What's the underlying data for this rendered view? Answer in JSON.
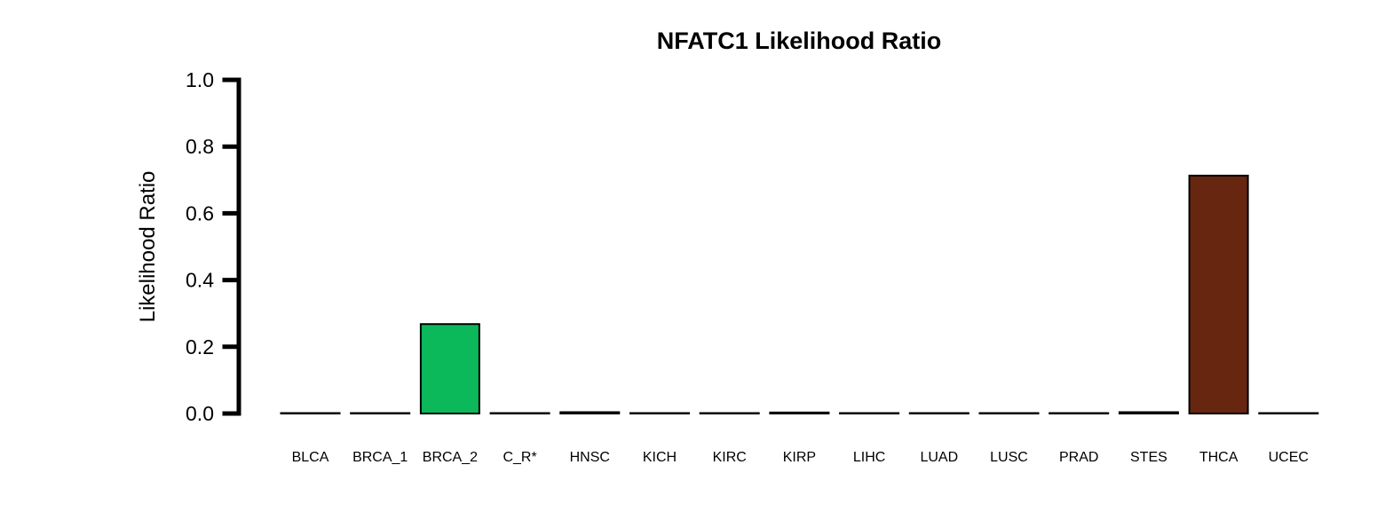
{
  "chart_data": {
    "type": "bar",
    "title": "NFATC1 Likelihood Ratio",
    "xlabel": "",
    "ylabel": "Likelihood Ratio",
    "ylim": [
      0,
      1
    ],
    "yticks": [
      "0.0",
      "0.2",
      "0.4",
      "0.6",
      "0.8",
      "1.0"
    ],
    "ytick_values": [
      0,
      0.2,
      0.4,
      0.6,
      0.8,
      1.0
    ],
    "grid": false,
    "categories": [
      "BLCA",
      "BRCA_1",
      "BRCA_2",
      "C_R*",
      "HNSC",
      "KICH",
      "KIRC",
      "KIRP",
      "LIHC",
      "LUAD",
      "LUSC",
      "PRAD",
      "STES",
      "THCA",
      "UCEC"
    ],
    "values": [
      0.0,
      0.0,
      0.268,
      0.0,
      0.004,
      0.0,
      0.0,
      0.003,
      0.0,
      0.0,
      0.0,
      0.0,
      0.004,
      0.713,
      0.0
    ],
    "colors": [
      "#ffffff",
      "#ffffff",
      "#0bb85a",
      "#ffffff",
      "#ffffff",
      "#ffffff",
      "#ffffff",
      "#ffffff",
      "#ffffff",
      "#ffffff",
      "#ffffff",
      "#ffffff",
      "#ffffff",
      "#662610",
      "#ffffff"
    ],
    "bar_outline_color": "#000000",
    "axis_color": "#000000"
  }
}
